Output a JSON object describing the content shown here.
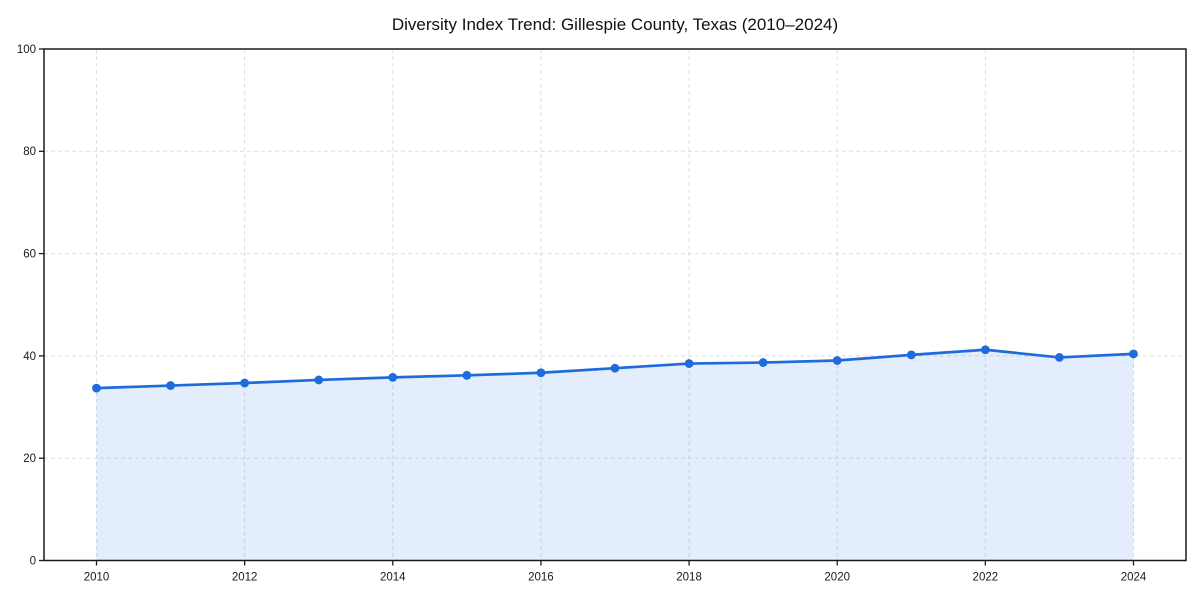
{
  "window": {
    "background": "#ffffff"
  },
  "chart_data": {
    "type": "line",
    "title": "Diversity Index Trend: Gillespie County, Texas (2010–2024)",
    "x": [
      2010,
      2011,
      2012,
      2013,
      2014,
      2015,
      2016,
      2017,
      2018,
      2019,
      2020,
      2021,
      2022,
      2023,
      2024
    ],
    "series": [
      {
        "name": "Diversity Index",
        "values": [
          33.7,
          34.2,
          34.7,
          35.3,
          35.8,
          36.2,
          36.7,
          37.6,
          38.5,
          38.7,
          39.1,
          40.2,
          41.2,
          39.7,
          40.4
        ],
        "color": "#1e6bdc",
        "marker": "circle",
        "marker_size": 4.4,
        "line_width": 2.7,
        "area_fill": true,
        "area_fill_opacity": 0.12
      }
    ],
    "xlabel": "",
    "ylabel": "",
    "ylim": [
      0,
      100
    ],
    "y_ticks": [
      0,
      20,
      40,
      60,
      80,
      100
    ],
    "x_ticks": [
      2010,
      2012,
      2014,
      2016,
      2018,
      2020,
      2022,
      2024
    ],
    "grid": true,
    "grid_style": "dashed",
    "grid_color": "#dedede",
    "axis_color": "#1a1a1a",
    "plot_background": "#ffffff",
    "legend": "none"
  }
}
